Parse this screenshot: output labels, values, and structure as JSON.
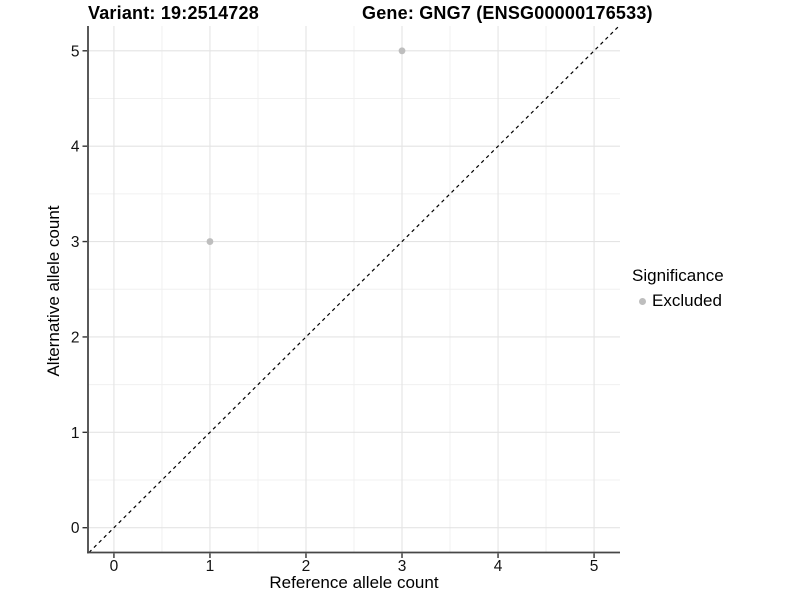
{
  "figure": {
    "titles": {
      "variant": "Variant: 19:2514728",
      "gene": "Gene: GNG7 (ENSG00000176533)"
    }
  },
  "legend": {
    "title": "Significance",
    "items": [
      {
        "label": "Excluded",
        "color": "#bebebe"
      }
    ]
  },
  "chart_data": {
    "type": "scatter",
    "titles": [
      "Variant: 19:2514728",
      "Gene: GNG7 (ENSG00000176533)"
    ],
    "xlabel": "Reference allele count",
    "ylabel": "Alternative allele count",
    "series": [
      {
        "name": "Excluded",
        "color": "#bebebe",
        "points": [
          [
            1,
            3
          ],
          [
            3,
            5
          ]
        ]
      }
    ],
    "xlim": [
      -0.27,
      5.27
    ],
    "ylim": [
      -0.26,
      5.26
    ],
    "x_ticks": [
      0,
      1,
      2,
      3,
      4,
      5
    ],
    "y_ticks": [
      0,
      1,
      2,
      3,
      4,
      5
    ],
    "x_minor_ticks": [
      0.5,
      1.5,
      2.5,
      3.5,
      4.5
    ],
    "y_minor_ticks": [
      0.5,
      1.5,
      2.5,
      3.5,
      4.5
    ],
    "identity_line": {
      "slope": 1,
      "intercept": 0,
      "style": "dashed",
      "color": "#000000"
    },
    "grid": "major+minor",
    "legend_position": "right"
  },
  "colors": {
    "background": "#ffffff",
    "grid_major": "#e4e4e4",
    "grid_minor": "#f0f0f0",
    "axis_line": "#474747",
    "tick_mark": "#333333",
    "tick_label": "#111111",
    "point": "#bebebe"
  }
}
